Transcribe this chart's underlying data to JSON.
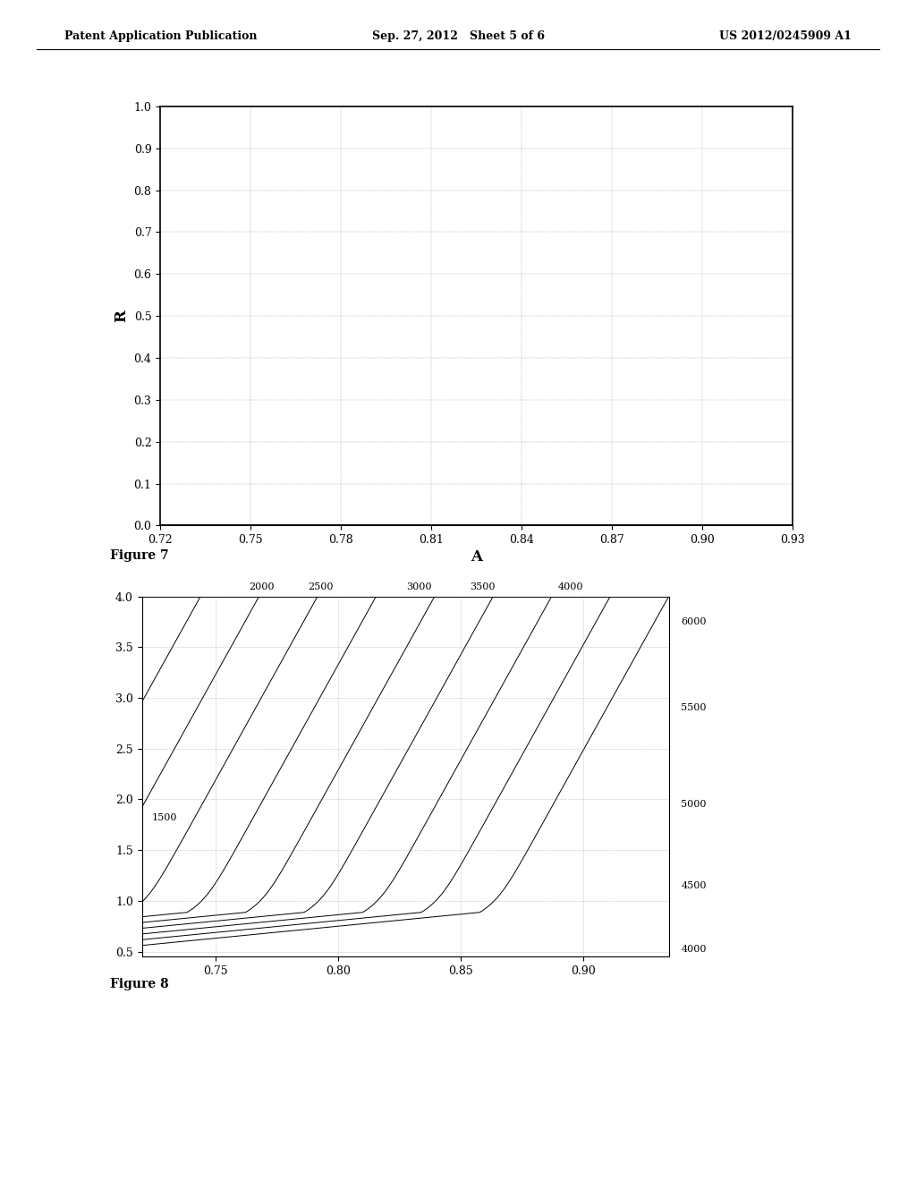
{
  "fig7": {
    "xlabel": "A",
    "ylabel": "R",
    "xlim": [
      0.72,
      0.93
    ],
    "ylim": [
      0.0,
      1.0
    ],
    "xticks": [
      0.72,
      0.75,
      0.78,
      0.81,
      0.84,
      0.87,
      0.9,
      0.93
    ],
    "yticks": [
      0.0,
      0.1,
      0.2,
      0.3,
      0.4,
      0.5,
      0.6,
      0.7,
      0.8,
      0.9,
      1.0
    ],
    "title": "Figure 7"
  },
  "fig8": {
    "xlim": [
      0.72,
      0.935
    ],
    "ylim": [
      0.45,
      4.0
    ],
    "xticks": [
      0.75,
      0.8,
      0.85,
      0.9
    ],
    "yticks": [
      0.5,
      1.0,
      1.5,
      2.0,
      2.5,
      3.0,
      3.5,
      4.0
    ],
    "levels": [
      1500,
      2000,
      2500,
      3000,
      3500,
      4000,
      4500,
      5000,
      5500,
      6000
    ],
    "title": "Figure 8"
  },
  "header_left": "Patent Application Publication",
  "header_center": "Sep. 27, 2012   Sheet 5 of 6",
  "header_right": "US 2012/0245909 A1",
  "bg_color": "#ffffff"
}
